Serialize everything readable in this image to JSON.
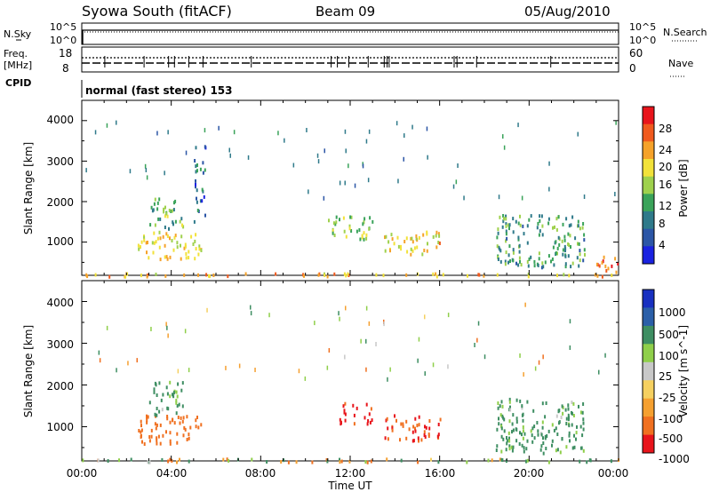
{
  "header": {
    "title": "Syowa South (fitACF)",
    "beam": "Beam 09",
    "date": "05/Aug/2010"
  },
  "strip_labels": {
    "nsky": "N.Sky",
    "nsearch": "N.Search",
    "freq": "Freq.",
    "freq_unit": "[MHz]",
    "nave": "Nave",
    "cpid": "CPID",
    "cpid_value": "normal (fast stereo) 153"
  },
  "noise_ticks_left": [
    "10^5",
    "10^0"
  ],
  "noise_ticks_right": [
    "10^5",
    "10^0"
  ],
  "freq_ticks": [
    "18",
    "8"
  ],
  "nave_ticks": [
    "60",
    "0"
  ],
  "power_colorbar": {
    "label": "Power [dB]",
    "ticks": [
      "28",
      "24",
      "20",
      "16",
      "12",
      "8",
      "4"
    ],
    "colors": [
      "#e8141b",
      "#f05a1e",
      "#f5a22a",
      "#f2e23a",
      "#9fd14d",
      "#3aa35a",
      "#2f7a8a",
      "#2c56a6",
      "#1a22e0"
    ]
  },
  "velocity_colorbar": {
    "label": "Velocity [m s^-1]",
    "ticks": [
      "1000",
      "500",
      "100",
      "25",
      "-25",
      "-100",
      "-500",
      "-1000"
    ],
    "colors": [
      "#1830c0",
      "#2b5fa8",
      "#3e8e62",
      "#8fcf4a",
      "#c8c8c8",
      "#f5d060",
      "#f5a030",
      "#f07020",
      "#e8141b"
    ]
  },
  "chart_data": [
    {
      "type": "heatmap",
      "panel": "power",
      "ylabel": "Slant Range [km]",
      "ylim": [
        180,
        4500
      ],
      "y_ticks": [
        "4000",
        "3000",
        "2000",
        "1000"
      ],
      "xlim": [
        "00:00",
        "24:00"
      ],
      "grid": false,
      "regions": [
        {
          "t_start": "00:00",
          "t_end": "24:00",
          "range_km": [
            180,
            260
          ],
          "power_db": 20
        },
        {
          "t_start": "02:30",
          "t_end": "05:20",
          "range_km": [
            600,
            1300
          ],
          "power_db": 18
        },
        {
          "t_start": "03:00",
          "t_end": "04:30",
          "range_km": [
            1300,
            2100
          ],
          "power_db": 12
        },
        {
          "t_start": "05:00",
          "t_end": "05:30",
          "range_km": [
            1500,
            3400
          ],
          "power_db": 6
        },
        {
          "t_start": "11:00",
          "t_end": "13:00",
          "range_km": [
            1100,
            1700
          ],
          "power_db": 14
        },
        {
          "t_start": "13:30",
          "t_end": "16:00",
          "range_km": [
            700,
            1300
          ],
          "power_db": 18
        },
        {
          "t_start": "18:30",
          "t_end": "22:30",
          "range_km": [
            400,
            1700
          ],
          "power_db": 10
        },
        {
          "t_start": "23:00",
          "t_end": "24:00",
          "range_km": [
            200,
            700
          ],
          "power_db": 24
        }
      ]
    },
    {
      "type": "heatmap",
      "panel": "velocity",
      "ylabel": "Slant Range [km]",
      "xlabel": "Time UT",
      "ylim": [
        180,
        4500
      ],
      "y_ticks": [
        "4000",
        "3000",
        "2000",
        "1000"
      ],
      "x_ticks": [
        "00:00",
        "04:00",
        "08:00",
        "12:00",
        "16:00",
        "20:00",
        "00:00"
      ],
      "xlim": [
        "00:00",
        "24:00"
      ],
      "grid": false,
      "regions": [
        {
          "t_start": "00:00",
          "t_end": "24:00",
          "range_km": [
            180,
            260
          ],
          "velocity_ms": 0
        },
        {
          "t_start": "02:30",
          "t_end": "05:20",
          "range_km": [
            600,
            1300
          ],
          "velocity_ms": -300
        },
        {
          "t_start": "03:00",
          "t_end": "04:30",
          "range_km": [
            1300,
            2100
          ],
          "velocity_ms": 200
        },
        {
          "t_start": "11:30",
          "t_end": "13:00",
          "range_km": [
            1100,
            1600
          ],
          "velocity_ms": -600
        },
        {
          "t_start": "13:30",
          "t_end": "16:00",
          "range_km": [
            700,
            1300
          ],
          "velocity_ms": -500
        },
        {
          "t_start": "18:30",
          "t_end": "22:30",
          "range_km": [
            400,
            1700
          ],
          "velocity_ms": 200
        }
      ]
    }
  ]
}
